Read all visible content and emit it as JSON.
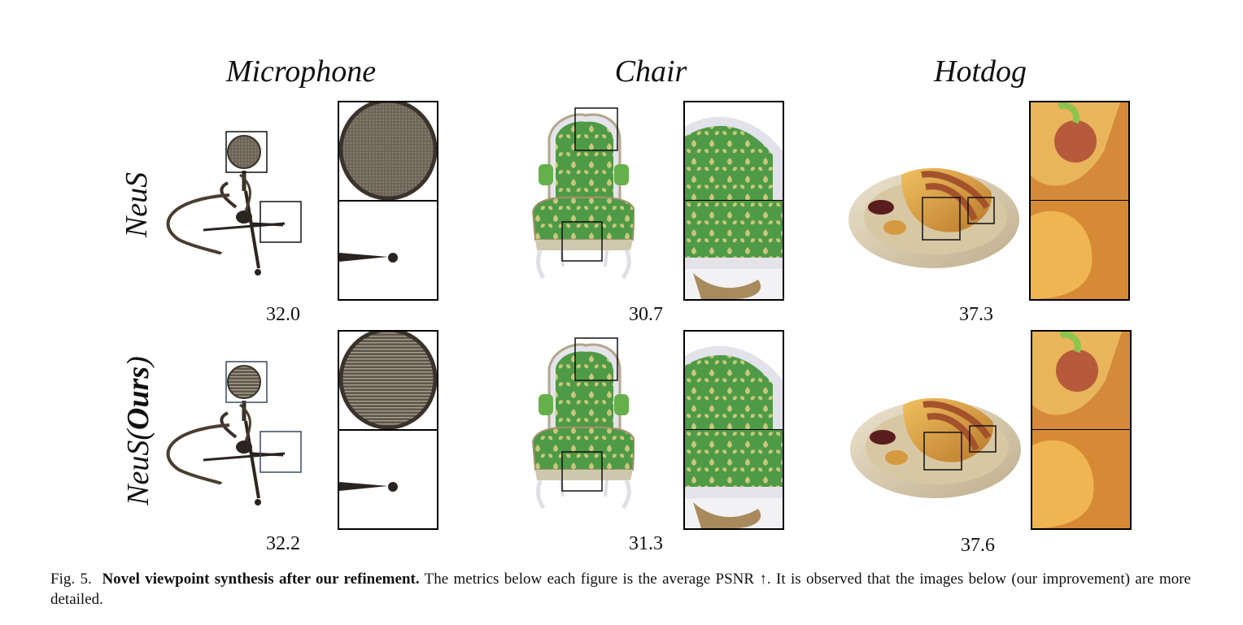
{
  "columns": [
    "Microphone",
    "Chair",
    "Hotdog"
  ],
  "rows": {
    "top": "NeuS",
    "bottom_plain": "NeuS(",
    "bottom_bold": "Ours",
    "bottom_close": ")"
  },
  "metrics": {
    "microphone_neus": "32.0",
    "microphone_ours": "32.2",
    "chair_neus": "30.7",
    "chair_ours": "31.3",
    "hotdog_neus": "37.3",
    "hotdog_ours": "37.6"
  },
  "caption": {
    "figure": "Fig. 5.",
    "bold": "Novel viewpoint synthesis after our refinement.",
    "text": "The metrics below each figure is the average PSNR ↑. It is observed that the images below (our improvement) are more detailed."
  }
}
